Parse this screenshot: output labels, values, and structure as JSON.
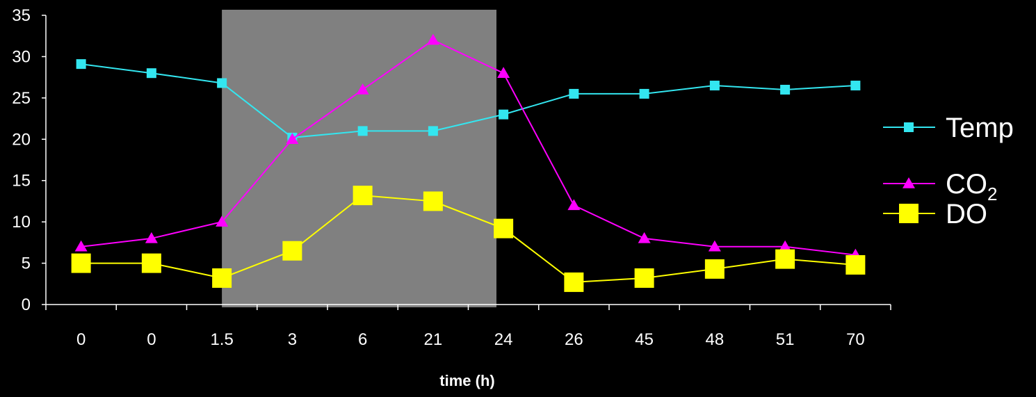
{
  "chart_data": {
    "type": "line",
    "categories": [
      "0",
      "0",
      "1.5",
      "3",
      "6",
      "21",
      "24",
      "26",
      "45",
      "48",
      "51",
      "70"
    ],
    "xlabel": "time (h)",
    "ylabel": "",
    "ylim": [
      0,
      35
    ],
    "yticks": [
      "0",
      "5",
      "10",
      "15",
      "20",
      "25",
      "30",
      "35"
    ],
    "grid": false,
    "legend_position": "right",
    "highlight": {
      "from_category_index": 2.5,
      "to_category_index": 6.4,
      "color": "#808080"
    },
    "series": [
      {
        "name": "Temp",
        "legend_main": "Temp",
        "legend_sub": "",
        "color": "#33e6f0",
        "marker": "square-small",
        "values": [
          29.1,
          28.0,
          26.8,
          20.2,
          21.0,
          21.0,
          23.0,
          25.5,
          25.5,
          26.5,
          26.0,
          26.5
        ]
      },
      {
        "name": "CO2",
        "legend_main": "CO",
        "legend_sub": "2",
        "color": "#ff00ff",
        "marker": "triangle",
        "values": [
          7.0,
          8.0,
          10.0,
          20.0,
          26.0,
          32.0,
          28.0,
          12.0,
          8.0,
          7.0,
          7.0,
          6.0
        ]
      },
      {
        "name": "DO",
        "legend_main": "DO",
        "legend_sub": "",
        "color": "#ffff00",
        "marker": "square-large",
        "values": [
          5.0,
          5.0,
          3.2,
          6.5,
          13.2,
          12.5,
          9.2,
          2.7,
          3.2,
          4.3,
          5.5,
          4.8
        ]
      }
    ]
  }
}
